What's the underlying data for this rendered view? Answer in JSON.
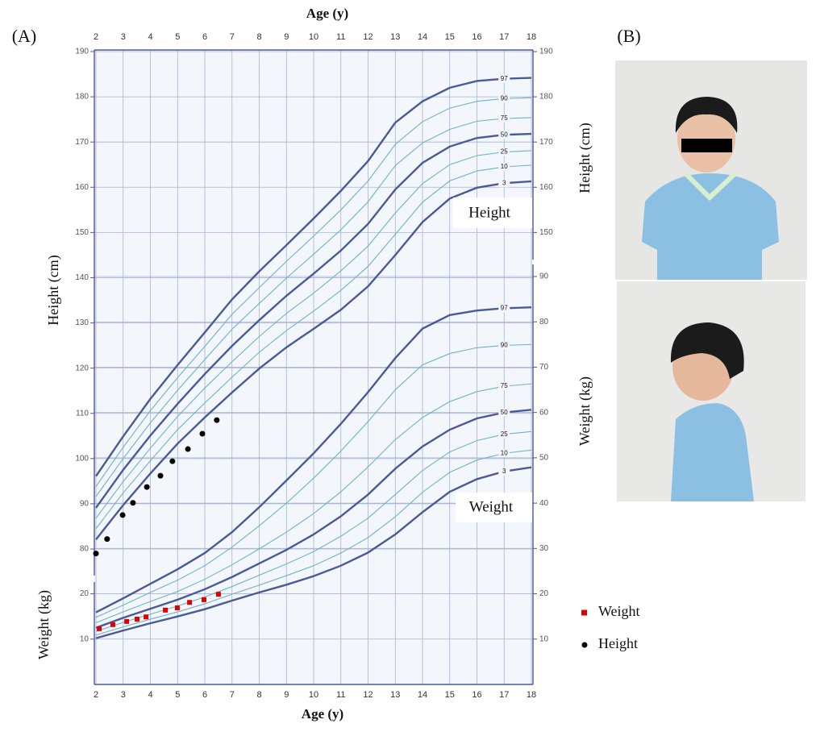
{
  "chart_data": {
    "type": "line",
    "panel_label": "(A)",
    "x_label": "Age (y)",
    "xlim": [
      2,
      18
    ],
    "xticks": [
      2,
      3,
      4,
      5,
      6,
      7,
      8,
      9,
      10,
      11,
      12,
      13,
      14,
      15,
      16,
      17,
      18
    ],
    "y_label": "Height (cm)",
    "ylim": [
      80,
      190
    ],
    "yticks": [
      80,
      90,
      100,
      110,
      120,
      130,
      140,
      150,
      160,
      170,
      180,
      190
    ],
    "yticks_right": [
      150,
      160,
      170,
      180,
      190
    ],
    "y2_label": "Weight (kg)",
    "y2lim": [
      0,
      90
    ],
    "y2ticks": [
      10,
      20,
      30,
      40,
      50,
      60,
      70,
      80,
      90
    ],
    "y2ticks_left": [
      10,
      20
    ],
    "grid": true,
    "x": [
      2,
      3,
      4,
      5,
      6,
      7,
      8,
      9,
      10,
      11,
      12,
      13,
      14,
      15,
      16,
      17,
      18
    ],
    "series": [
      {
        "name": "3",
        "color": "#4a5a96",
        "width": 2.4,
        "values": [
          82.1,
          89.7,
          96.7,
          103.3,
          109.1,
          114.6,
          119.9,
          124.6,
          128.7,
          132.9,
          138.1,
          145.0,
          152.3,
          157.5,
          159.9,
          160.9,
          161.3
        ]
      },
      {
        "name": "10",
        "color": "#6cb3c9",
        "width": 1.1,
        "values": [
          84.5,
          92.4,
          99.5,
          106.4,
          112.3,
          118.0,
          123.5,
          128.3,
          132.6,
          137.2,
          142.5,
          149.6,
          156.7,
          161.4,
          163.6,
          164.5,
          164.9
        ]
      },
      {
        "name": "25",
        "color": "#6cb3c9",
        "width": 1.1,
        "values": [
          86.8,
          94.9,
          102.3,
          109.3,
          115.6,
          121.4,
          127.0,
          132.1,
          136.6,
          141.5,
          147.0,
          154.3,
          160.8,
          165.0,
          167.0,
          167.8,
          168.1
        ]
      },
      {
        "name": "50",
        "color": "#4a5a96",
        "width": 2.4,
        "values": [
          89.1,
          97.5,
          105.1,
          112.1,
          118.7,
          124.9,
          130.6,
          136.0,
          140.9,
          146.0,
          151.9,
          159.5,
          165.4,
          169.0,
          170.9,
          171.6,
          171.8
        ]
      },
      {
        "name": "75",
        "color": "#6cb3c9",
        "width": 1.1,
        "values": [
          91.6,
          100.0,
          107.9,
          115.1,
          121.9,
          128.6,
          134.3,
          139.9,
          145.2,
          150.6,
          156.8,
          164.8,
          169.8,
          172.8,
          174.6,
          175.2,
          175.4
        ]
      },
      {
        "name": "90",
        "color": "#6cb3c9",
        "width": 1.1,
        "values": [
          93.8,
          102.5,
          110.6,
          117.9,
          124.8,
          131.9,
          137.8,
          143.6,
          149.2,
          155.0,
          161.4,
          169.5,
          174.5,
          177.5,
          179.0,
          179.6,
          179.8
        ]
      },
      {
        "name": "97",
        "color": "#4a5a96",
        "width": 2.4,
        "values": [
          96.1,
          104.9,
          113.2,
          120.7,
          127.9,
          135.2,
          141.4,
          147.2,
          153.1,
          159.2,
          165.8,
          174.3,
          179.0,
          182.0,
          183.5,
          184.0,
          184.2
        ]
      },
      {
        "name": "3",
        "axis": "y2",
        "color": "#4a5a96",
        "width": 2.4,
        "values": [
          10.2,
          11.9,
          13.5,
          15.0,
          16.6,
          18.5,
          20.3,
          22.0,
          23.9,
          26.2,
          29.1,
          33.1,
          38.0,
          42.5,
          45.3,
          47.0,
          47.9
        ]
      },
      {
        "name": "10",
        "axis": "y2",
        "color": "#6cb3c9",
        "width": 1.1,
        "values": [
          10.9,
          12.7,
          14.4,
          16.0,
          17.8,
          19.9,
          21.9,
          24.0,
          26.2,
          29.0,
          32.4,
          37.0,
          42.4,
          46.8,
          49.5,
          51.0,
          51.7
        ]
      },
      {
        "name": "25",
        "axis": "y2",
        "color": "#6cb3c9",
        "width": 1.1,
        "values": [
          11.7,
          13.7,
          15.5,
          17.3,
          19.3,
          21.6,
          24.1,
          26.6,
          29.3,
          32.7,
          36.7,
          41.9,
          47.2,
          51.3,
          53.8,
          55.2,
          55.8
        ]
      },
      {
        "name": "50",
        "axis": "y2",
        "color": "#4a5a96",
        "width": 2.4,
        "values": [
          12.5,
          14.7,
          16.7,
          18.7,
          21.0,
          23.7,
          26.7,
          29.7,
          33.1,
          37.1,
          41.9,
          47.6,
          52.5,
          56.2,
          58.7,
          60.0,
          60.6
        ]
      },
      {
        "name": "75",
        "axis": "y2",
        "color": "#6cb3c9",
        "width": 1.1,
        "values": [
          13.6,
          16.0,
          18.3,
          20.5,
          23.2,
          26.4,
          29.9,
          33.6,
          37.7,
          42.5,
          48.0,
          54.0,
          58.9,
          62.4,
          64.6,
          65.8,
          66.3
        ]
      },
      {
        "name": "90",
        "axis": "y2",
        "color": "#6cb3c9",
        "width": 1.1,
        "values": [
          14.8,
          17.5,
          20.3,
          23.0,
          26.2,
          30.3,
          35.0,
          40.0,
          45.5,
          51.5,
          58.0,
          65.0,
          70.5,
          73.0,
          74.3,
          74.8,
          75.0
        ]
      },
      {
        "name": "97",
        "axis": "y2",
        "color": "#4a5a96",
        "width": 2.4,
        "values": [
          15.9,
          19.0,
          22.2,
          25.4,
          29.0,
          33.6,
          39.1,
          45.0,
          51.0,
          57.5,
          64.5,
          72.0,
          78.5,
          81.5,
          82.5,
          83.0,
          83.2
        ]
      }
    ],
    "scatter": [
      {
        "name": "Weight",
        "axis": "y2",
        "marker": "square",
        "color": "#e00000",
        "x": [
          2.12,
          2.62,
          3.13,
          3.51,
          3.84,
          4.55,
          4.99,
          5.44,
          5.97,
          6.5
        ],
        "values": [
          12.3,
          13.2,
          13.9,
          14.4,
          14.9,
          16.4,
          16.9,
          18.1,
          18.7,
          19.9
        ]
      },
      {
        "name": "Height",
        "marker": "circle",
        "color": "#000000",
        "x": [
          2.0,
          2.41,
          2.98,
          3.36,
          3.87,
          4.37,
          4.81,
          5.38,
          5.91,
          6.44
        ],
        "values": [
          79.0,
          82.2,
          87.5,
          90.2,
          93.7,
          96.2,
          99.4,
          102.1,
          105.5,
          108.5
        ]
      }
    ],
    "annotations": [
      "Height",
      "Weight"
    ]
  },
  "photo_panel": {
    "label": "(B)"
  }
}
